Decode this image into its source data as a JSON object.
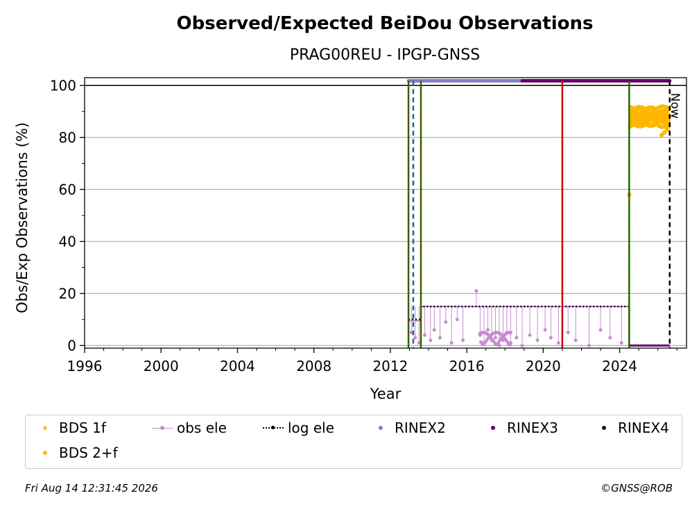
{
  "chart_data": {
    "type": "scatter",
    "title": "Observed/Expected BeiDou Observations",
    "subtitle": "PRAG00REU - IPGP-GNSS",
    "xlabel": "Year",
    "ylabel": "Obs/Exp Observations (%)",
    "xlim": [
      1996,
      2027.5
    ],
    "ylim": [
      -1,
      103
    ],
    "x_ticks": [
      "1996",
      "2000",
      "2004",
      "2008",
      "2012",
      "2016",
      "2020",
      "2024"
    ],
    "y_ticks": [
      "0",
      "20",
      "40",
      "60",
      "80",
      "100"
    ],
    "grid": "horizontal",
    "now_label": "Now",
    "now_x": 2026.62,
    "legend": [
      {
        "name": "BDS 1f",
        "color": "#f5c242"
      },
      {
        "name": "obs ele",
        "color": "#c58ccf"
      },
      {
        "name": "log ele",
        "color": "#000000"
      },
      {
        "name": "RINEX2",
        "color": "#8080c0"
      },
      {
        "name": "RINEX3",
        "color": "#660066"
      },
      {
        "name": "RINEX4",
        "color": "#2b0a2b"
      },
      {
        "name": "BDS 2+f",
        "color": "#ffb700"
      }
    ],
    "vertical_lines": [
      {
        "x": 2012.95,
        "color": "#008000",
        "style": "solid"
      },
      {
        "x": 2012.95,
        "color": "#cc0000",
        "style": "dotted"
      },
      {
        "x": 2013.2,
        "color": "#1f5f9f",
        "style": "dashed"
      },
      {
        "x": 2013.6,
        "color": "#008000",
        "style": "solid"
      },
      {
        "x": 2013.6,
        "color": "#cc0000",
        "style": "dotted"
      },
      {
        "x": 2021.0,
        "color": "#cc0000",
        "style": "solid"
      },
      {
        "x": 2024.5,
        "color": "#008000",
        "style": "solid"
      },
      {
        "x": 2024.5,
        "color": "#cc0000",
        "style": "dotted"
      },
      {
        "x": 2026.62,
        "color": "#000000",
        "style": "dashed"
      }
    ],
    "rinex_bars": [
      {
        "name": "RINEX2",
        "x_start": 2012.95,
        "x_end": 2018.9,
        "y": 101.8
      },
      {
        "name": "RINEX3",
        "x_start": 2018.9,
        "x_end": 2026.62,
        "y": 101.8
      }
    ],
    "log_ele": {
      "x": [
        2012.95,
        2013.6,
        2013.6,
        2024.5,
        2024.5,
        2026.62
      ],
      "y": [
        10,
        10,
        15,
        15,
        0,
        0
      ]
    },
    "obs_ele": {
      "baseline_y": 15,
      "drop_x": [
        2013.1,
        2013.3,
        2013.5,
        2013.8,
        2014.1,
        2014.3,
        2014.6,
        2014.9,
        2015.2,
        2015.5,
        2015.8,
        2016.7,
        2016.9,
        2017.1,
        2017.3,
        2017.5,
        2017.7,
        2017.9,
        2018.1,
        2018.3,
        2018.6,
        2018.9,
        2019.3,
        2019.7,
        2020.1,
        2020.4,
        2020.8,
        2021.3,
        2021.7,
        2022.4,
        2023.0,
        2023.5,
        2024.1
      ],
      "drop_y": [
        5,
        3,
        1,
        4,
        2,
        6,
        3,
        9,
        1,
        10,
        2,
        4,
        1,
        6,
        2,
        3,
        0,
        2,
        5,
        1,
        3,
        0,
        4,
        2,
        6,
        3,
        1,
        5,
        2,
        0,
        6,
        3,
        1
      ],
      "outlier": {
        "x": 2016.5,
        "y": 21
      }
    },
    "bds_2f": {
      "x_start": 2024.55,
      "x_end": 2026.6,
      "y_min": 84,
      "y_max": 92,
      "outlier": {
        "x": 2024.5,
        "y": 58
      },
      "tail_x": [
        2026.2,
        2026.35,
        2026.5
      ],
      "tail_y": [
        81,
        82,
        83
      ]
    }
  },
  "footer": {
    "timestamp": "Fri Aug 14 12:31:45 2026",
    "credit": "©GNSS@ROB"
  }
}
